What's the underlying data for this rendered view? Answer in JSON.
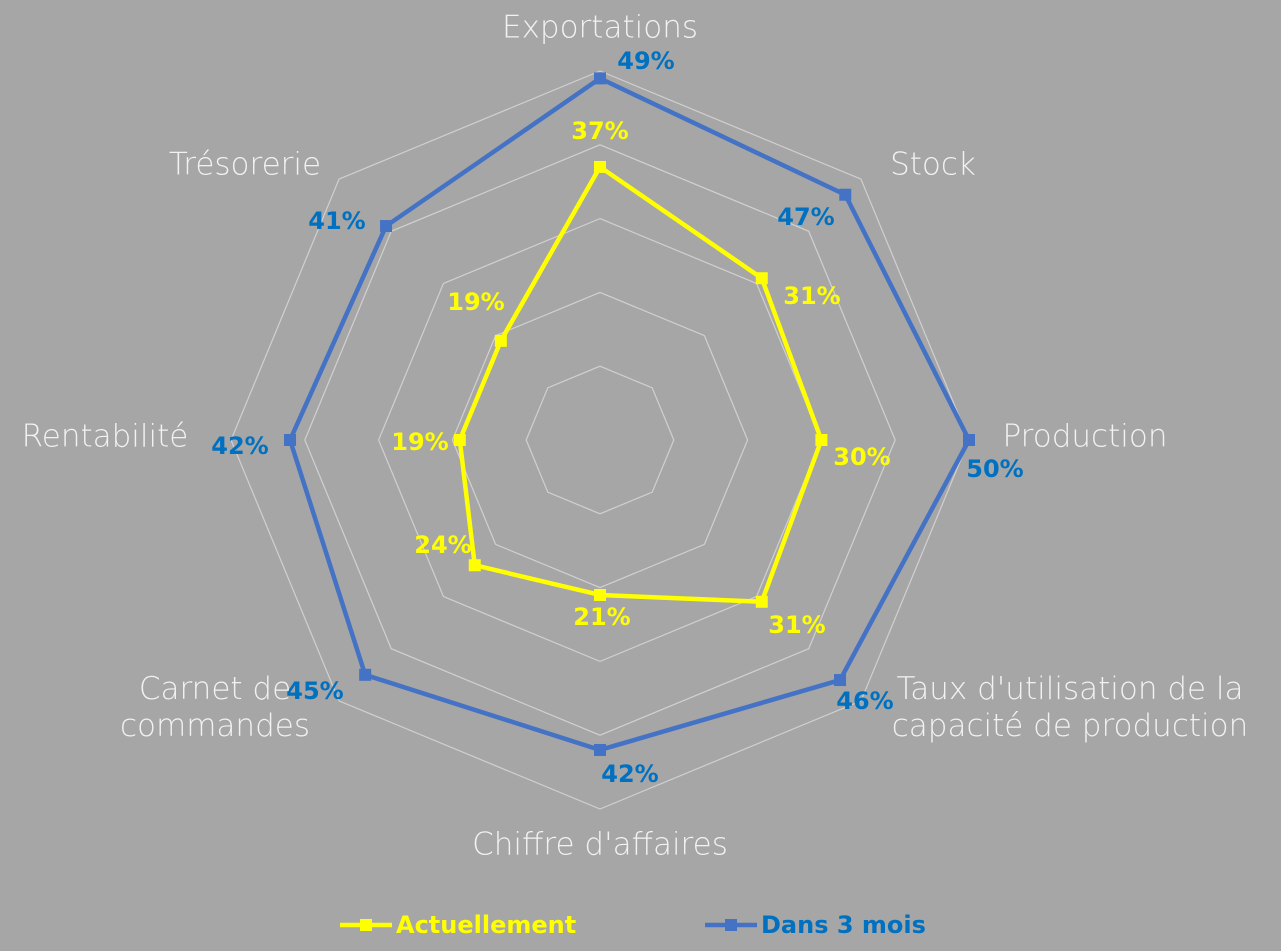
{
  "chart_data": {
    "type": "radar",
    "categories": [
      "Exportations",
      "Stock",
      "Production",
      "Taux d'utilisation de la capacité de production",
      "Chiffre d'affaires",
      "Carnet de commandes",
      "Rentabilité",
      "Trésorerie"
    ],
    "series": [
      {
        "name": "Actuellement",
        "color": "#ffff00",
        "label_color": "#ffff00",
        "values": [
          37,
          31,
          30,
          31,
          21,
          24,
          19,
          19
        ],
        "value_labels": [
          "37%",
          "31%",
          "30%",
          "31%",
          "21%",
          "24%",
          "19%",
          "19%"
        ]
      },
      {
        "name": "Dans 3 mois",
        "color": "#4472c4",
        "label_color": "#0070c0",
        "values": [
          49,
          47,
          50,
          46,
          42,
          45,
          42,
          41
        ],
        "value_labels": [
          "49%",
          "47%",
          "50%",
          "46%",
          "42%",
          "45%",
          "42%",
          "41%"
        ]
      }
    ],
    "ylim": [
      0,
      50
    ],
    "yticks": [
      0,
      10,
      20,
      30,
      40,
      50
    ],
    "grid": true,
    "legend": "bottom"
  }
}
